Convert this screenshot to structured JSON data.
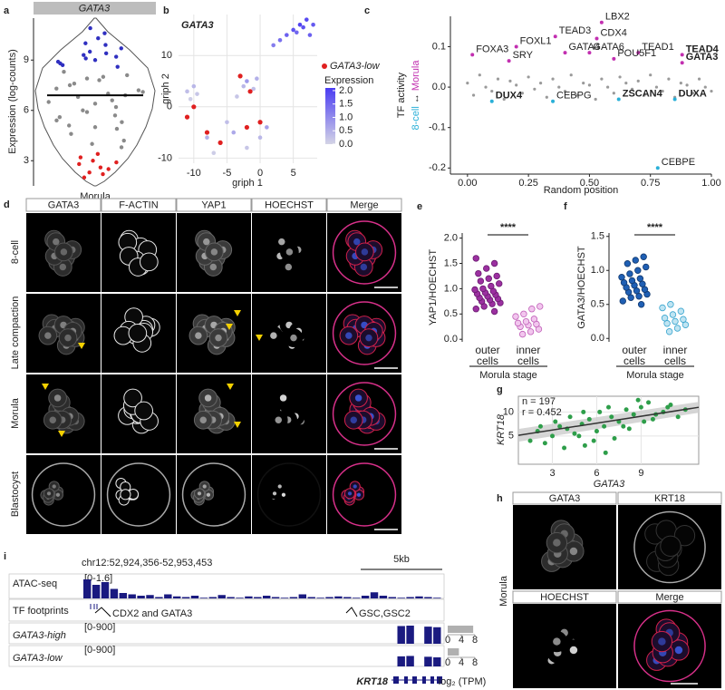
{
  "panel_labels": [
    "a",
    "b",
    "c",
    "d",
    "e",
    "f",
    "g",
    "h",
    "i"
  ],
  "chart_data": [
    {
      "type": "violin",
      "title": "GATA3",
      "ylabel": "Expression (log-counts)",
      "xlabel": "Morula",
      "ylim": [
        1.5,
        11.5
      ],
      "yticks": [
        3,
        6,
        9
      ],
      "median": 6.9,
      "groups": [
        {
          "color": "#2f2fc0",
          "values": [
            8.6,
            8.8,
            9.1,
            9.4,
            9.7,
            10.0,
            10.3,
            10.6,
            10.9,
            9.0,
            9.2,
            8.7,
            9.5,
            9.9,
            8.9,
            9.3
          ]
        },
        {
          "color": "#8a8a8a",
          "values": [
            4.2,
            4.6,
            5.0,
            5.3,
            5.6,
            5.9,
            6.2,
            6.5,
            6.8,
            7.0,
            7.2,
            7.5,
            7.8,
            8.1,
            8.3,
            4.0,
            4.9,
            5.4,
            6.0,
            6.6,
            7.1,
            7.6,
            8.0,
            3.8,
            5.1,
            6.4,
            6.9,
            7.3,
            7.9,
            5.7
          ]
        },
        {
          "color": "#e02020",
          "values": [
            2.0,
            2.3,
            2.6,
            2.9,
            3.2,
            3.4,
            2.5,
            2.8,
            3.0,
            2.2
          ]
        }
      ]
    },
    {
      "type": "scatter",
      "title": "GATA3",
      "xlabel": "griph 1",
      "ylabel": "griph 2",
      "xlim": [
        -12.3,
        8.6
      ],
      "xticks": [
        -10,
        -5,
        0,
        5
      ],
      "ylim": [
        -11,
        18
      ],
      "yticks": [
        -10,
        0,
        10
      ],
      "grid": true,
      "x": [
        2,
        3,
        4,
        5,
        6,
        7,
        8,
        5.5,
        6.5,
        7.5,
        -3,
        -2.5,
        -2,
        -1,
        -0.5,
        -3.5,
        -11,
        -10.5,
        -10,
        -9.5,
        -8,
        -6,
        -4,
        -2,
        0,
        1,
        -7,
        -5
      ],
      "y": [
        12,
        13,
        14,
        15,
        16,
        17,
        16,
        14.5,
        15.5,
        14,
        6,
        4,
        5,
        3.5,
        5.5,
        2,
        3,
        1.5,
        4,
        2.5,
        -6,
        -7,
        -5,
        -8,
        -6,
        -4,
        -9,
        -3
      ],
      "expression": [
        1.2,
        1.4,
        1.6,
        1.8,
        2.0,
        1.9,
        1.7,
        1.5,
        1.8,
        1.6,
        0.6,
        0.4,
        0.8,
        0.3,
        0.5,
        0.2,
        0.3,
        0.1,
        0.4,
        0.2,
        0.5,
        0.3,
        0.6,
        0.2,
        0.4,
        0.7,
        0.1,
        0.3
      ],
      "low_name": "GATA3-low",
      "low_color": "#e02020",
      "low_x": [
        -10,
        -11,
        -3,
        -6,
        -2,
        -8,
        0,
        -1.5
      ],
      "low_y": [
        0,
        -2,
        6,
        -7,
        -4,
        -5,
        -3,
        3
      ],
      "colorbar_title": "Expression",
      "colormap": [
        "#d4d4e6",
        "#4a3cf2"
      ],
      "clim": [
        0,
        2.1
      ],
      "cticks": [
        {
          "value": 2.0,
          "label": "2.0"
        },
        1.5,
        {
          "value": 1.0,
          "label": "1.0"
        },
        0.5,
        {
          "value": 0.0,
          "label": "0.0"
        }
      ]
    },
    {
      "type": "scatter",
      "xlabel": "Random position",
      "ylabel": "TF activity",
      "ylabel_low": "8-cell",
      "ylabel_arrow": "↔",
      "ylabel_high": "Morula",
      "low_color": "#2ab0d8",
      "high_color": "#c22fb0",
      "xlim": [
        -0.07,
        1.0
      ],
      "xticks": [
        {
          "value": 0,
          "label": "0.00"
        },
        {
          "value": 0.25,
          "label": "0.25"
        },
        {
          "value": 0.5,
          "label": "0.50"
        },
        {
          "value": 0.75,
          "label": "0.75"
        },
        {
          "value": 1,
          "label": "1.00"
        }
      ],
      "ylim": [
        -0.215,
        0.175
      ],
      "yticks": [
        0.1,
        {
          "value": 0,
          "label": "0.0"
        },
        -0.1,
        -0.2
      ],
      "color": "#9a9a9a",
      "x": [
        0,
        0.025,
        0.05,
        0.075,
        0.1,
        0.125,
        0.15,
        0.175,
        0.2,
        0.225,
        0.25,
        0.275,
        0.3,
        0.325,
        0.35,
        0.375,
        0.4,
        0.425,
        0.45,
        0.475,
        0.5,
        0.525,
        0.55,
        0.575,
        0.6,
        0.625,
        0.65,
        0.675,
        0.7,
        0.725,
        0.75,
        0.775,
        0.8,
        0.825,
        0.85,
        0.875,
        0.9,
        0.925,
        0.95,
        0.975,
        1.0
      ],
      "y": [
        0.01,
        -0.02,
        0.03,
        0.0,
        -0.01,
        0.02,
        -0.03,
        0.015,
        0.005,
        -0.015,
        0.025,
        -0.005,
        0.01,
        -0.025,
        0.02,
        0.0,
        -0.01,
        0.03,
        -0.02,
        0.01,
        0.005,
        -0.03,
        0.02,
        0.0,
        -0.015,
        0.025,
        0.01,
        -0.005,
        0.015,
        -0.02,
        0.03,
        0.0,
        -0.01,
        0.02,
        -0.025,
        0.01,
        0.005,
        -0.015,
        0.02,
        0.0,
        -0.01
      ],
      "labeled": {
        "names": [
          "LBX2",
          "FOXA3",
          "FOXL1",
          "SRY",
          "TEAD3",
          "GATA4",
          "CDX4",
          "GATA6",
          "TEAD1",
          "POU5F1",
          "TEAD4",
          "GATA3",
          "DUX4",
          "CEBPG",
          "ZSCAN4",
          "DUXA",
          "CEBPE"
        ],
        "x": [
          0.55,
          0.02,
          0.2,
          0.17,
          0.36,
          0.4,
          0.53,
          0.5,
          0.7,
          0.6,
          0.88,
          0.88,
          0.1,
          0.35,
          0.62,
          0.85,
          0.78
        ],
        "y": [
          0.16,
          0.08,
          0.1,
          0.065,
          0.125,
          0.085,
          0.12,
          0.085,
          0.085,
          0.07,
          0.08,
          0.06,
          -0.035,
          -0.035,
          -0.03,
          -0.03,
          -0.2
        ],
        "colors": [
          "#c22fb0",
          "#c22fb0",
          "#c22fb0",
          "#c22fb0",
          "#c22fb0",
          "#c22fb0",
          "#c22fb0",
          "#c22fb0",
          "#c22fb0",
          "#c22fb0",
          "#c22fb0",
          "#c22fb0",
          "#2ab0d8",
          "#2ab0d8",
          "#2ab0d8",
          "#2ab0d8",
          "#2ab0d8"
        ],
        "bold": [
          false,
          false,
          false,
          false,
          false,
          false,
          false,
          false,
          false,
          false,
          true,
          true,
          true,
          false,
          true,
          true,
          false
        ]
      }
    },
    {
      "type": "dot",
      "ylabel": "YAP1/HOECHST",
      "xlabel": "Morula stage",
      "significance": "****",
      "categories": [
        "outer cells",
        "inner cells"
      ],
      "ylim": [
        -0.05,
        2.1
      ],
      "yticks": [
        {
          "value": 0,
          "label": "0.0"
        },
        0.5,
        {
          "value": 1,
          "label": "1.0"
        },
        1.5,
        {
          "value": 2,
          "label": "2.0"
        }
      ],
      "groups": [
        {
          "fill": "#9b30a0",
          "stroke": "#6a1a70",
          "values": [
            0.55,
            0.6,
            0.65,
            0.7,
            0.72,
            0.75,
            0.78,
            0.8,
            0.82,
            0.85,
            0.88,
            0.9,
            0.92,
            0.95,
            0.98,
            1.0,
            1.05,
            1.1,
            1.15,
            1.2,
            1.25,
            1.3,
            1.4,
            1.5,
            1.6
          ]
        },
        {
          "fill": "#f2c6ee",
          "stroke": "#c060b8",
          "values": [
            0.1,
            0.15,
            0.2,
            0.25,
            0.28,
            0.3,
            0.32,
            0.35,
            0.4,
            0.45,
            0.5,
            0.6,
            0.65
          ]
        }
      ]
    },
    {
      "type": "dot",
      "ylabel": "GATA3/HOECHST",
      "xlabel": "Morula stage",
      "significance": "****",
      "categories": [
        "outer cells",
        "inner cells"
      ],
      "ylim": [
        -0.05,
        1.55
      ],
      "yticks": [
        {
          "value": 0,
          "label": "0.0"
        },
        0.5,
        {
          "value": 1,
          "label": "1.0"
        },
        1.5
      ],
      "groups": [
        {
          "fill": "#1f5fb4",
          "stroke": "#123a70",
          "values": [
            0.5,
            0.55,
            0.6,
            0.62,
            0.65,
            0.68,
            0.7,
            0.72,
            0.75,
            0.78,
            0.8,
            0.82,
            0.85,
            0.88,
            0.9,
            0.95,
            1.0,
            1.05,
            1.1,
            1.15,
            1.2
          ]
        },
        {
          "fill": "#bfe4f2",
          "stroke": "#3aa6cf",
          "values": [
            0.1,
            0.15,
            0.2,
            0.22,
            0.25,
            0.28,
            0.3,
            0.35,
            0.4,
            0.45,
            0.5
          ]
        }
      ]
    },
    {
      "type": "scatter",
      "xlabel": "GATA3",
      "ylabel": "KRT18",
      "n_label": "n = 197",
      "r_label": "r = 0.452",
      "color": "#2e9e4a",
      "xlim": [
        0.7,
        12.9
      ],
      "xticks": [
        3,
        6,
        9
      ],
      "ylim": [
        -0.9,
        13.3
      ],
      "yticks": [
        5,
        10
      ],
      "grid": true,
      "fit": {
        "intercept": 4.8,
        "slope": 0.48
      },
      "x": [
        1.5,
        2,
        2.5,
        3,
        3.2,
        3.5,
        4,
        4.2,
        4.5,
        5,
        5.2,
        5.5,
        6,
        6.2,
        6.5,
        7,
        7.2,
        7.5,
        8,
        8.2,
        8.5,
        9,
        9.2,
        9.5,
        10,
        10.5,
        11,
        11.5,
        12,
        3.8,
        4.8,
        5.8,
        6.8,
        7.8,
        8.8,
        9.8,
        2.2,
        10.8,
        6.6,
        5.1
      ],
      "y": [
        4,
        6,
        3.5,
        5,
        8,
        7,
        6.5,
        9,
        5.5,
        7.5,
        3,
        8.5,
        6,
        10,
        7,
        9,
        4.5,
        8,
        10.5,
        6.5,
        9.5,
        11,
        8,
        12,
        9.5,
        10,
        11.5,
        9,
        10.5,
        2.5,
        5,
        4,
        11,
        7,
        12.5,
        8.5,
        7,
        11,
        1.5,
        10
      ]
    },
    {
      "type": "hbar",
      "xlabel": "log₂ (TPM)",
      "values": [
        7.5,
        3.3
      ],
      "color": "#b0b0b0",
      "xlim": [
        0,
        8
      ],
      "xticks": [
        0,
        4,
        8
      ]
    }
  ],
  "micrographs_d": {
    "columns": [
      "GATA3",
      "F-ACTIN",
      "YAP1",
      "HOECHST",
      "Merge"
    ],
    "column_colors": [
      "#2a9d4a",
      "#e0202c",
      "#d020a0",
      "#2f6fbf",
      "#000000"
    ],
    "rows": [
      "8-cell",
      "Late compaction",
      "Morula",
      "Blastocyst"
    ]
  },
  "micrographs_h": {
    "columns": [
      "GATA3",
      "KRT18",
      "HOECHST",
      "Merge"
    ],
    "column_colors": [
      "#2a9d4a",
      "#d020a0",
      "#2f6fbf",
      "#000000"
    ],
    "row": "Morula"
  },
  "tracks": {
    "locus": "chr12:52,924,356-52,953,453",
    "scale": "5kb",
    "atac": {
      "name": "ATAC-seq",
      "range": "[0-1.6]",
      "ylim": [
        0,
        1.6
      ],
      "color": "#1a1a80",
      "values": [
        1.4,
        1.0,
        1.2,
        0.7,
        0.4,
        0.3,
        0.2,
        0.25,
        0.1,
        0.3,
        0.15,
        0.1,
        0.2,
        0.05,
        0.1,
        0.25,
        0.1,
        0.05,
        0.15,
        0.1,
        0.2,
        0.1,
        0.05,
        0.1,
        0.3,
        0.1,
        0.05,
        0.1,
        0.15,
        0.1,
        0.05,
        0.2,
        0.45,
        0.2,
        0.1,
        0.05,
        0.1,
        0.15,
        0.1,
        0.05
      ]
    },
    "footprints": {
      "name": "TF footprints",
      "labels": [
        "CDX2 and GATA3",
        "GSC,GSC2"
      ]
    },
    "rna": [
      {
        "name": "GATA3-high",
        "name_color": "#1a1acc",
        "range": "[0-900]",
        "ylim": [
          0,
          900
        ],
        "color": "#1a1a80",
        "values": [
          0,
          0,
          0,
          0,
          0,
          0,
          0,
          0,
          0,
          0,
          0,
          0,
          0,
          0,
          0,
          0,
          0,
          0,
          0,
          0,
          0,
          0,
          0,
          0,
          0,
          0,
          0,
          0,
          0,
          0,
          0,
          0,
          0,
          0,
          0,
          880,
          900,
          0,
          850,
          820
        ]
      },
      {
        "name": "GATA3-low",
        "name_color": "#e02020",
        "range": "[0-900]",
        "ylim": [
          0,
          900
        ],
        "color": "#1a1a80",
        "values": [
          0,
          0,
          0,
          0,
          0,
          0,
          0,
          0,
          0,
          0,
          0,
          0,
          0,
          0,
          0,
          0,
          0,
          0,
          0,
          0,
          0,
          0,
          0,
          0,
          0,
          0,
          0,
          0,
          0,
          0,
          0,
          0,
          0,
          0,
          0,
          500,
          520,
          0,
          480,
          450
        ]
      }
    ],
    "gene": "KRT18"
  }
}
